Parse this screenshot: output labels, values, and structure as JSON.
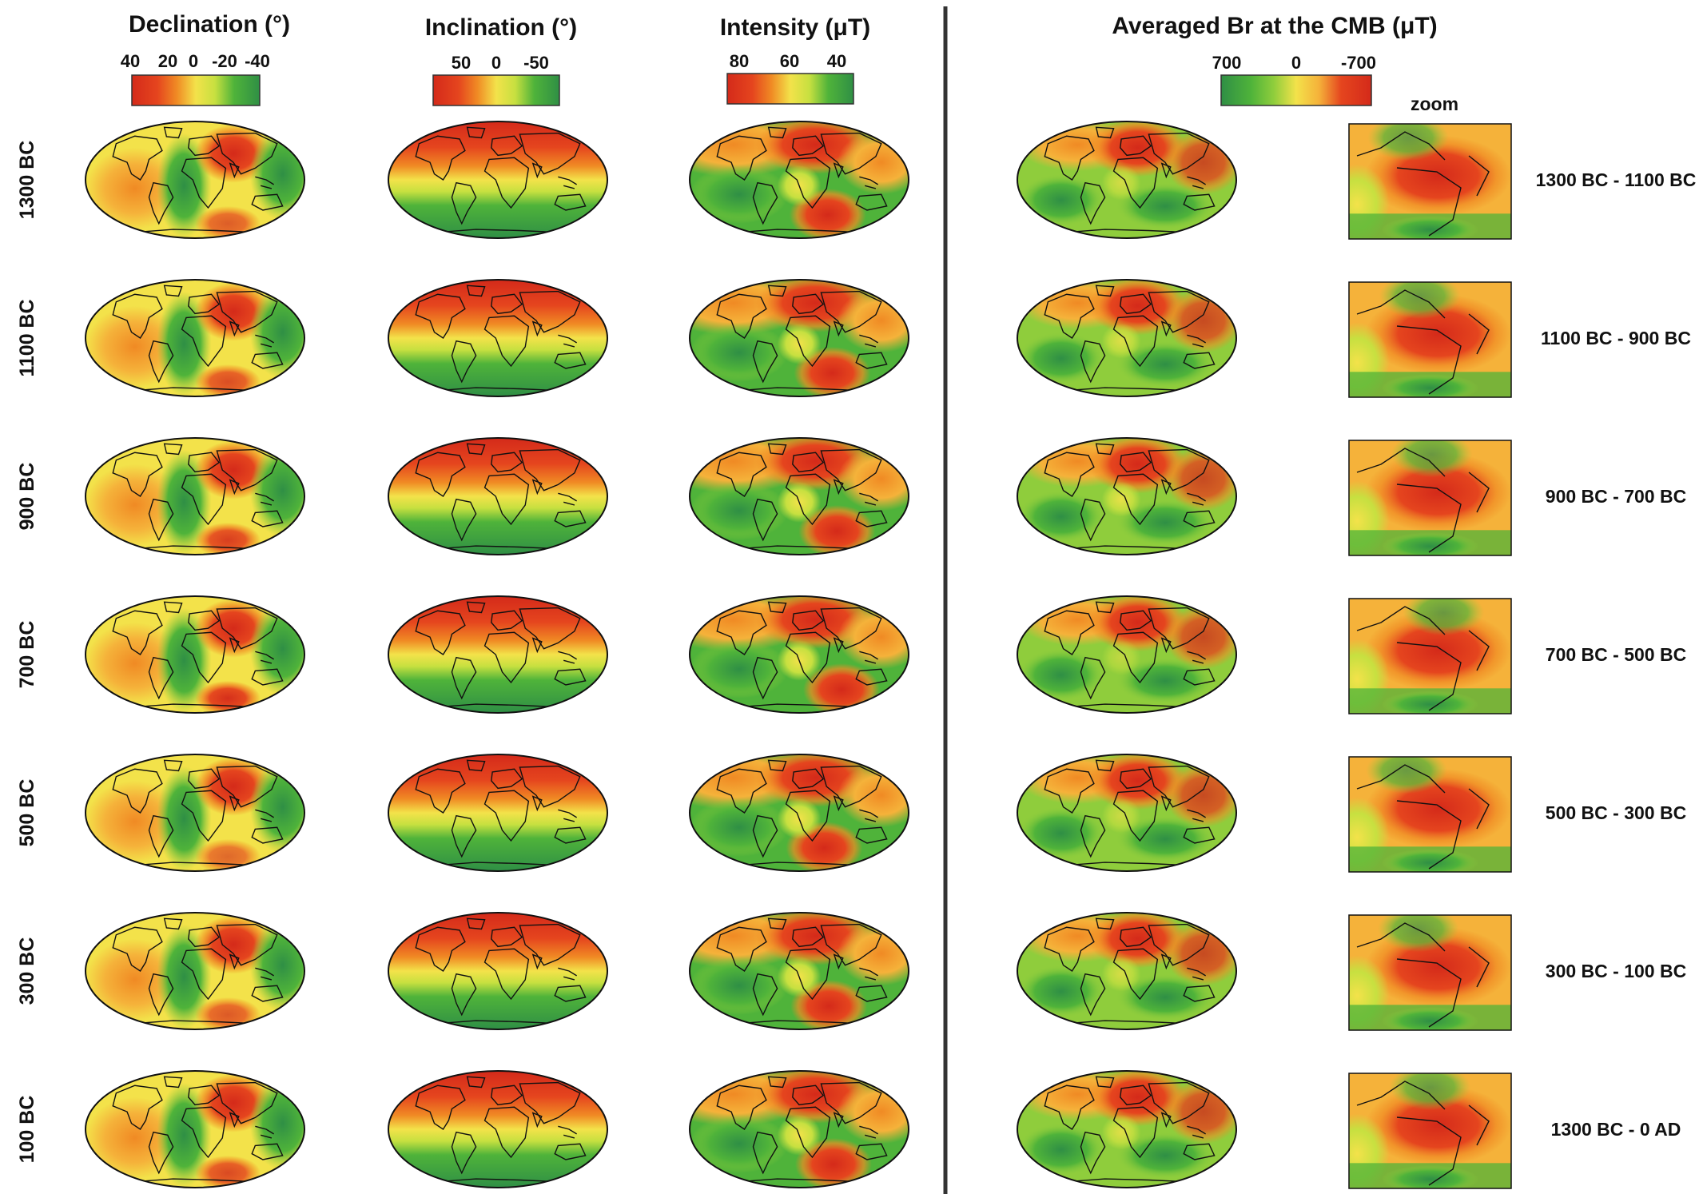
{
  "columns": [
    {
      "id": "declination",
      "title": "Declination (°)",
      "ticks": [
        "40",
        "20",
        "0",
        "-20",
        "-40"
      ]
    },
    {
      "id": "inclination",
      "title": "Inclination (°)",
      "ticks": [
        "50",
        "0",
        "-50"
      ]
    },
    {
      "id": "intensity",
      "title": "Intensity (μT)",
      "ticks": [
        "80",
        "60",
        "40"
      ]
    },
    {
      "id": "cmb_br",
      "title": "Averaged Br at the CMB (μT)",
      "ticks": [
        "700",
        "0",
        "-700"
      ]
    }
  ],
  "zoom_label": "zoom",
  "rows": [
    {
      "epoch": "1300 BC",
      "interval": "1300 BC - 1100 BC"
    },
    {
      "epoch": "1100 BC",
      "interval": "1100 BC - 900 BC"
    },
    {
      "epoch": "900 BC",
      "interval": "900 BC - 700 BC"
    },
    {
      "epoch": "700 BC",
      "interval": "700 BC - 500 BC"
    },
    {
      "epoch": "500 BC",
      "interval": "500 BC - 300 BC"
    },
    {
      "epoch": "300 BC",
      "interval": "300 BC - 100 BC"
    },
    {
      "epoch": "100 BC",
      "interval": "1300 BC - 0 AD"
    }
  ],
  "colors": {
    "dark_red": "#d42a1a",
    "red": "#e5451e",
    "orange": "#f08a24",
    "light_orange": "#f5b23a",
    "yellow": "#f3e24a",
    "yellow_green": "#c7e040",
    "light_green": "#8fcd3c",
    "green": "#4fb33a",
    "dark_green": "#2f8f45",
    "divider": "#333333",
    "coastline": "#111111"
  }
}
